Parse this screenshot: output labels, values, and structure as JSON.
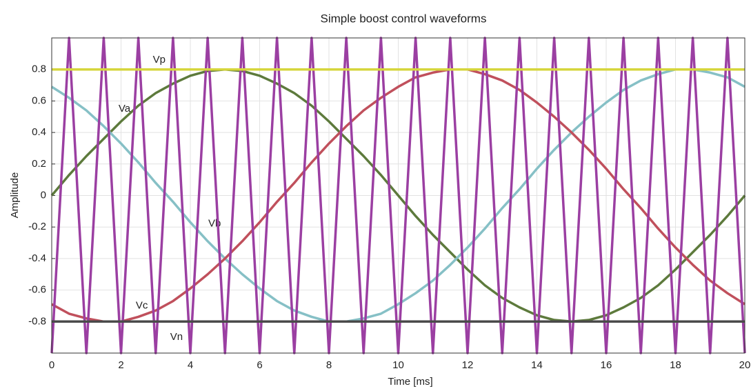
{
  "chart_data": {
    "type": "line",
    "title": "Simple boost control waveforms",
    "x_label": "Time [ms]",
    "y_label": "Amplitude",
    "xlim": [
      0,
      20
    ],
    "xticks": [
      0,
      2,
      4,
      6,
      8,
      10,
      12,
      14,
      16,
      18,
      20
    ],
    "ylim": [
      -1,
      1
    ],
    "yticks": [
      -0.8,
      -0.6,
      -0.4,
      -0.2,
      0,
      0.2,
      0.4,
      0.6,
      0.8
    ],
    "grid": true,
    "x": [
      0,
      0.5,
      1,
      1.5,
      2,
      2.5,
      3,
      3.5,
      4,
      4.5,
      5,
      5.5,
      6,
      6.5,
      7,
      7.5,
      8,
      8.5,
      9,
      9.5,
      10,
      10.5,
      11,
      11.5,
      12,
      12.5,
      13,
      13.5,
      14,
      14.5,
      15,
      15.5,
      16,
      16.5,
      17,
      17.5,
      18,
      18.5,
      19,
      19.5,
      20
    ],
    "series": [
      {
        "name": "Va",
        "color": "#5d7a3c",
        "values": [
          0,
          0.13,
          0.25,
          0.36,
          0.47,
          0.57,
          0.65,
          0.71,
          0.76,
          0.79,
          0.8,
          0.79,
          0.76,
          0.71,
          0.65,
          0.57,
          0.47,
          0.36,
          0.25,
          0.13,
          0,
          -0.13,
          -0.25,
          -0.36,
          -0.47,
          -0.57,
          -0.65,
          -0.71,
          -0.76,
          -0.79,
          -0.8,
          -0.79,
          -0.76,
          -0.71,
          -0.65,
          -0.57,
          -0.47,
          -0.36,
          -0.25,
          -0.13,
          0
        ]
      },
      {
        "name": "Vb",
        "color": "#86c0c6",
        "values": [
          0.69,
          0.62,
          0.54,
          0.44,
          0.33,
          0.21,
          0.08,
          -0.04,
          -0.17,
          -0.29,
          -0.4,
          -0.5,
          -0.59,
          -0.67,
          -0.73,
          -0.77,
          -0.8,
          -0.8,
          -0.78,
          -0.75,
          -0.69,
          -0.62,
          -0.54,
          -0.44,
          -0.33,
          -0.21,
          -0.08,
          0.04,
          0.17,
          0.29,
          0.4,
          0.5,
          0.59,
          0.67,
          0.73,
          0.77,
          0.8,
          0.8,
          0.78,
          0.75,
          0.69
        ]
      },
      {
        "name": "Vc",
        "color": "#c0505c",
        "values": [
          -0.69,
          -0.75,
          -0.78,
          -0.8,
          -0.8,
          -0.77,
          -0.73,
          -0.67,
          -0.59,
          -0.5,
          -0.4,
          -0.29,
          -0.17,
          -0.04,
          0.08,
          0.21,
          0.33,
          0.44,
          0.54,
          0.62,
          0.69,
          0.75,
          0.78,
          0.8,
          0.8,
          0.77,
          0.73,
          0.67,
          0.59,
          0.5,
          0.4,
          0.29,
          0.17,
          0.04,
          -0.08,
          -0.21,
          -0.33,
          -0.44,
          -0.54,
          -0.62,
          -0.69
        ]
      },
      {
        "color": "#9b3fa2",
        "values": [
          -1,
          1,
          -1,
          1,
          -1,
          1,
          -1,
          1,
          -1,
          1,
          -1,
          1,
          -1,
          1,
          -1,
          1,
          -1,
          1,
          -1,
          1,
          -1,
          1,
          -1,
          1,
          -1,
          1,
          -1,
          1,
          -1,
          1,
          -1,
          1,
          -1,
          1,
          -1,
          1,
          -1,
          1,
          -1,
          1,
          -1
        ]
      },
      {
        "name": "Vp",
        "color": "#d6d63c",
        "x": [
          0,
          20
        ],
        "values": [
          0.8,
          0.8
        ]
      },
      {
        "name": "Vn",
        "color": "#4a4a4a",
        "x": [
          0,
          20
        ],
        "values": [
          -0.8,
          -0.8
        ]
      }
    ]
  }
}
